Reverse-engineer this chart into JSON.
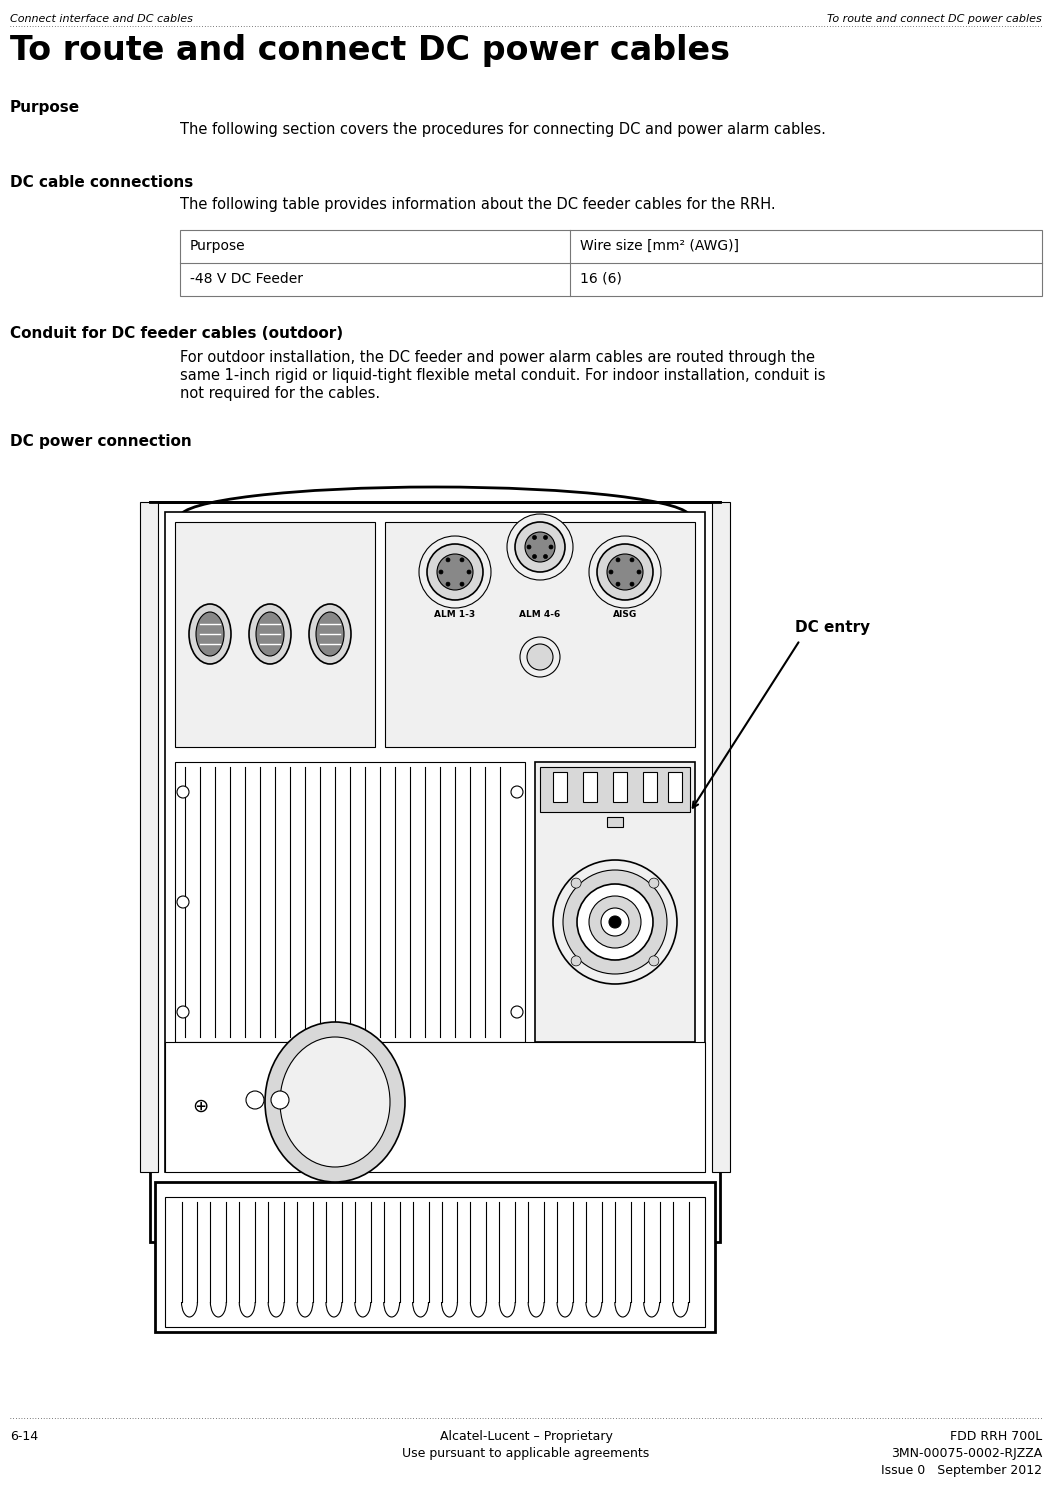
{
  "bg_color": "#ffffff",
  "header_left": "Connect interface and DC cables",
  "header_right": "To route and connect DC power cables",
  "main_title": "To route and connect DC power cables",
  "section1_heading": "Purpose",
  "section1_body": "The following section covers the procedures for connecting DC and power alarm cables.",
  "section2_heading": "DC cable connections",
  "section2_body": "The following table provides information about the DC feeder cables for the RRH.",
  "table_headers": [
    "Purpose",
    "Wire size [mm² (AWG)]"
  ],
  "table_row": [
    "-48 V DC Feeder",
    "16 (6)"
  ],
  "section3_heading": "Conduit for DC feeder cables (outdoor)",
  "section3_body_line1": "For outdoor installation, the DC feeder and power alarm cables are routed through the",
  "section3_body_line2": "same 1-inch rigid or liquid-tight flexible metal conduit. For indoor installation, conduit is",
  "section3_body_line3": "not required for the cables.",
  "section4_heading": "DC power connection",
  "dc_entry_label": "DC entry",
  "footer_left": "6-14",
  "footer_center_line1": "Alcatel-Lucent – Proprietary",
  "footer_center_line2": "Use pursuant to applicable agreements",
  "footer_right_line1": "FDD RRH 700L",
  "footer_right_line2": "3MN-00075-0002-RJZZA",
  "footer_right_line3": "Issue 0   September 2012",
  "line_color": "#000000",
  "fill_white": "#ffffff",
  "fill_light": "#f0f0f0",
  "fill_gray": "#d8d8d8",
  "fill_dark": "#888888"
}
